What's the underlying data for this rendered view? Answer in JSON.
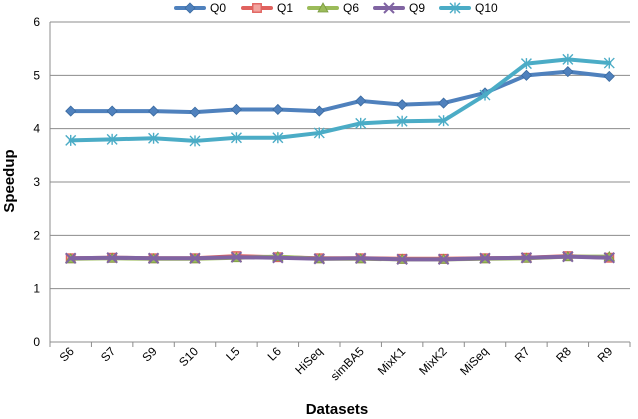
{
  "chart_data": {
    "type": "line",
    "categories": [
      "S6",
      "S7",
      "S9",
      "S10",
      "L5",
      "L6",
      "HiSeq",
      "simBA5",
      "MixK1",
      "MixK2",
      "MiSeq",
      "R7",
      "R8",
      "R9"
    ],
    "ylabel": "Speedup",
    "xlabel": "Datasets",
    "ylim": [
      0,
      6
    ],
    "yticks": [
      0,
      1,
      2,
      3,
      4,
      5,
      6
    ],
    "grid": "horizontal",
    "legend_position": "top",
    "series": [
      {
        "name": "Q0",
        "color": "#4F81BD",
        "marker": "diamond",
        "values": [
          4.33,
          4.33,
          4.33,
          4.31,
          4.36,
          4.36,
          4.33,
          4.52,
          4.45,
          4.48,
          4.67,
          5.0,
          5.07,
          4.98
        ]
      },
      {
        "name": "Q1",
        "color": "#E0625E",
        "marker": "square",
        "values": [
          1.57,
          1.58,
          1.57,
          1.57,
          1.61,
          1.59,
          1.57,
          1.57,
          1.56,
          1.56,
          1.57,
          1.58,
          1.61,
          1.58
        ]
      },
      {
        "name": "Q6",
        "color": "#9BBB59",
        "marker": "triangle",
        "values": [
          1.56,
          1.57,
          1.56,
          1.56,
          1.58,
          1.6,
          1.56,
          1.56,
          1.55,
          1.55,
          1.56,
          1.57,
          1.6,
          1.6
        ]
      },
      {
        "name": "Q9",
        "color": "#8064A2",
        "marker": "x",
        "values": [
          1.57,
          1.58,
          1.57,
          1.57,
          1.59,
          1.58,
          1.56,
          1.57,
          1.55,
          1.55,
          1.57,
          1.58,
          1.6,
          1.58
        ]
      },
      {
        "name": "Q10",
        "color": "#4BACC6",
        "marker": "star",
        "values": [
          3.78,
          3.8,
          3.82,
          3.77,
          3.83,
          3.83,
          3.92,
          4.1,
          4.14,
          4.15,
          4.63,
          5.22,
          5.3,
          5.23
        ]
      }
    ]
  }
}
